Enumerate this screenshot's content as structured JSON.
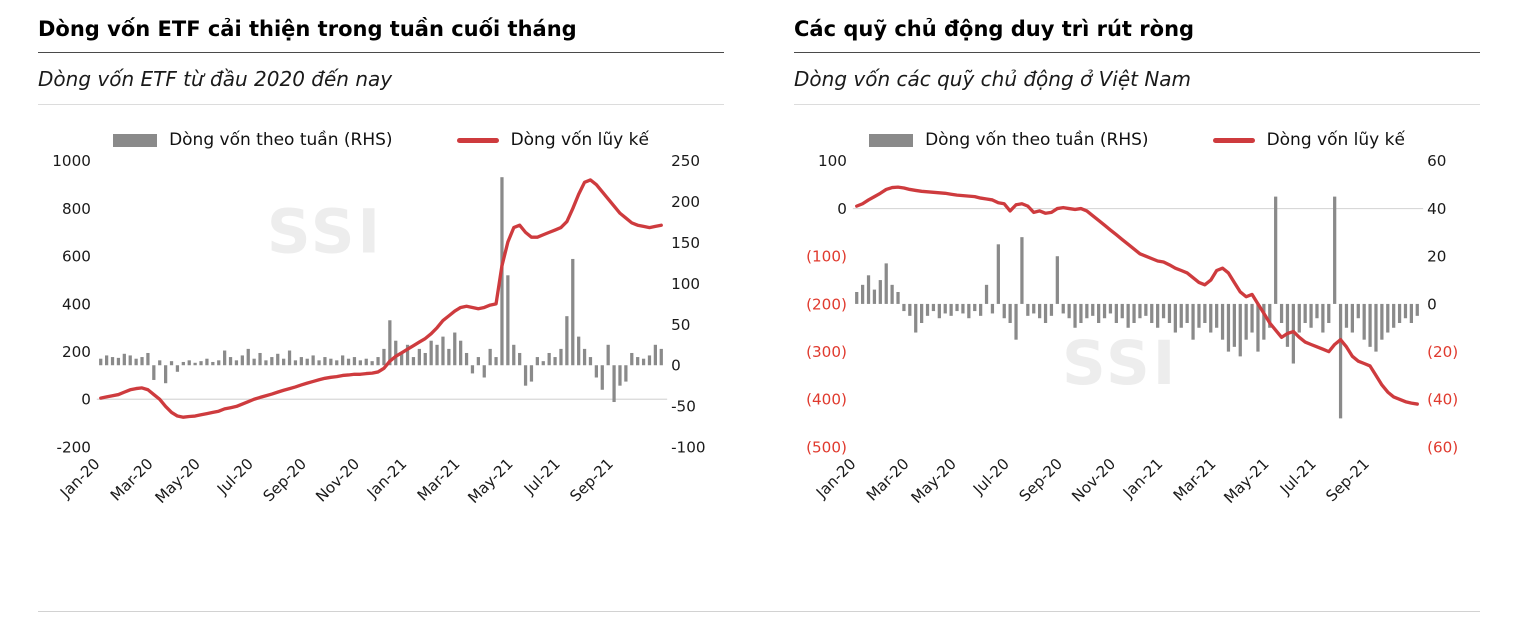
{
  "colors": {
    "bar": "#8a8a8a",
    "line": "#ce3b3e",
    "negative_label": "#e03a2e",
    "watermark": "#ededed",
    "axis_label": "#1a1a1a",
    "gridline": "#d8d8d8"
  },
  "footer": {
    "divider": true
  },
  "chart_data": [
    {
      "type": "bar",
      "subtype": "combo-bar-line-dual-axis",
      "title": "Dòng vốn ETF cải thiện trong tuần cuối tháng",
      "subtitle": "Dòng vốn ETF từ đầu 2020 đến nay",
      "watermark": "SSI",
      "watermark_pos": {
        "x": 0.4,
        "y": 0.32
      },
      "legend": [
        {
          "label": "Dòng vốn theo tuần (RHS)",
          "marker": "bar"
        },
        {
          "label": "Dòng vốn lũy kế",
          "marker": "line"
        }
      ],
      "x_tick_labels": [
        "Jan-20",
        "Mar-20",
        "May-20",
        "Jul-20",
        "Sep-20",
        "Nov-20",
        "Jan-21",
        "Mar-21",
        "May-21",
        "Jul-21",
        "Sep-21"
      ],
      "x_tick_indices": [
        0,
        9,
        17,
        26,
        35,
        44,
        52,
        61,
        70,
        78,
        87
      ],
      "left_axis": {
        "min": -200,
        "max": 1000,
        "ticks": [
          1000,
          800,
          600,
          400,
          200,
          0,
          -200
        ],
        "labels": [
          "1000",
          "800",
          "600",
          "400",
          "200",
          "0",
          "-200"
        ]
      },
      "right_axis": {
        "min": -100,
        "max": 250,
        "ticks": [
          250,
          200,
          150,
          100,
          50,
          0,
          -50,
          -100
        ],
        "labels": [
          "250",
          "200",
          "150",
          "100",
          "50",
          "0",
          "-50",
          "-100"
        ]
      },
      "series": [
        {
          "name": "Dòng vốn theo tuần (RHS)",
          "type": "bar",
          "axis": "right",
          "values": [
            8,
            12,
            10,
            9,
            14,
            12,
            8,
            10,
            15,
            -18,
            6,
            -22,
            5,
            -8,
            4,
            6,
            3,
            5,
            8,
            4,
            6,
            18,
            10,
            6,
            12,
            20,
            8,
            15,
            6,
            10,
            14,
            8,
            18,
            6,
            10,
            8,
            12,
            6,
            10,
            8,
            6,
            12,
            8,
            10,
            6,
            8,
            5,
            10,
            20,
            55,
            30,
            15,
            25,
            10,
            20,
            15,
            30,
            25,
            35,
            20,
            40,
            30,
            15,
            -10,
            10,
            -15,
            20,
            10,
            230,
            110,
            25,
            15,
            -25,
            -20,
            10,
            5,
            15,
            10,
            20,
            60,
            130,
            35,
            20,
            10,
            -15,
            -30,
            25,
            -45,
            -25,
            -20,
            15,
            10,
            8,
            12,
            25,
            20
          ]
        },
        {
          "name": "Dòng vốn lũy kế",
          "type": "line",
          "axis": "left",
          "values": [
            5,
            10,
            15,
            20,
            30,
            40,
            45,
            48,
            40,
            20,
            0,
            -30,
            -55,
            -70,
            -75,
            -72,
            -70,
            -65,
            -60,
            -55,
            -50,
            -40,
            -35,
            -30,
            -20,
            -10,
            0,
            8,
            15,
            22,
            30,
            38,
            45,
            52,
            60,
            68,
            75,
            82,
            88,
            92,
            95,
            100,
            102,
            105,
            105,
            108,
            110,
            115,
            130,
            160,
            180,
            195,
            210,
            225,
            240,
            255,
            275,
            300,
            330,
            350,
            370,
            385,
            390,
            385,
            380,
            385,
            395,
            400,
            560,
            660,
            720,
            730,
            700,
            680,
            680,
            690,
            700,
            710,
            720,
            745,
            800,
            860,
            910,
            920,
            900,
            870,
            840,
            810,
            780,
            760,
            740,
            730,
            725,
            720,
            725,
            730
          ]
        }
      ]
    },
    {
      "type": "bar",
      "subtype": "combo-bar-line-dual-axis",
      "title": "Các quỹ chủ động duy trì rút ròng",
      "subtitle": "Dòng vốn các quỹ chủ động ở Việt Nam",
      "watermark": "SSI",
      "watermark_pos": {
        "x": 0.47,
        "y": 0.78
      },
      "legend": [
        {
          "label": "Dòng vốn theo tuần (RHS)",
          "marker": "bar"
        },
        {
          "label": "Dòng vốn lũy kế",
          "marker": "line"
        }
      ],
      "x_tick_labels": [
        "Jan-20",
        "Mar-20",
        "May-20",
        "Jul-20",
        "Sep-20",
        "Nov-20",
        "Jan-21",
        "Mar-21",
        "May-21",
        "Jul-21",
        "Sep-21"
      ],
      "x_tick_indices": [
        0,
        9,
        17,
        26,
        35,
        44,
        52,
        61,
        70,
        78,
        87
      ],
      "left_axis": {
        "min": -500,
        "max": 100,
        "ticks": [
          100,
          0,
          -100,
          -200,
          -300,
          -400,
          -500
        ],
        "labels": [
          "100",
          "0",
          "(100)",
          "(200)",
          "(300)",
          "(400)",
          "(500)"
        ]
      },
      "right_axis": {
        "min": -60,
        "max": 60,
        "ticks": [
          60,
          40,
          20,
          0,
          -20,
          -40,
          -60
        ],
        "labels": [
          "60",
          "40",
          "20",
          "0",
          "(20)",
          "(40)",
          "(60)"
        ]
      },
      "series": [
        {
          "name": "Dòng vốn theo tuần (RHS)",
          "type": "bar",
          "axis": "right",
          "values": [
            5,
            8,
            12,
            6,
            10,
            17,
            8,
            5,
            -3,
            -5,
            -12,
            -8,
            -5,
            -3,
            -6,
            -4,
            -5,
            -3,
            -4,
            -6,
            -3,
            -5,
            8,
            -4,
            25,
            -6,
            -8,
            -15,
            28,
            -5,
            -4,
            -6,
            -8,
            -5,
            20,
            -4,
            -6,
            -10,
            -8,
            -6,
            -5,
            -8,
            -6,
            -4,
            -8,
            -6,
            -10,
            -8,
            -6,
            -5,
            -8,
            -10,
            -6,
            -8,
            -12,
            -10,
            -8,
            -15,
            -10,
            -8,
            -12,
            -10,
            -15,
            -20,
            -18,
            -22,
            -15,
            -12,
            -20,
            -15,
            -10,
            45,
            -8,
            -18,
            -25,
            -12,
            -8,
            -10,
            -6,
            -12,
            -8,
            45,
            -48,
            -10,
            -12,
            -6,
            -15,
            -18,
            -20,
            -15,
            -12,
            -10,
            -8,
            -6,
            -8,
            -5
          ]
        },
        {
          "name": "Dòng vốn lũy kế",
          "type": "line",
          "axis": "left",
          "values": [
            5,
            10,
            18,
            25,
            32,
            40,
            44,
            45,
            43,
            40,
            38,
            36,
            35,
            34,
            33,
            32,
            30,
            28,
            27,
            26,
            25,
            22,
            20,
            18,
            12,
            10,
            -5,
            8,
            10,
            5,
            -8,
            -5,
            -10,
            -8,
            0,
            2,
            0,
            -2,
            0,
            -5,
            -15,
            -25,
            -35,
            -45,
            -55,
            -65,
            -75,
            -85,
            -95,
            -100,
            -105,
            -110,
            -112,
            -118,
            -125,
            -130,
            -135,
            -145,
            -155,
            -160,
            -150,
            -130,
            -125,
            -135,
            -155,
            -175,
            -185,
            -180,
            -200,
            -220,
            -240,
            -255,
            -270,
            -262,
            -258,
            -270,
            -280,
            -285,
            -290,
            -295,
            -300,
            -285,
            -275,
            -290,
            -310,
            -320,
            -325,
            -330,
            -350,
            -370,
            -385,
            -395,
            -400,
            -405,
            -408,
            -410
          ]
        }
      ]
    }
  ]
}
